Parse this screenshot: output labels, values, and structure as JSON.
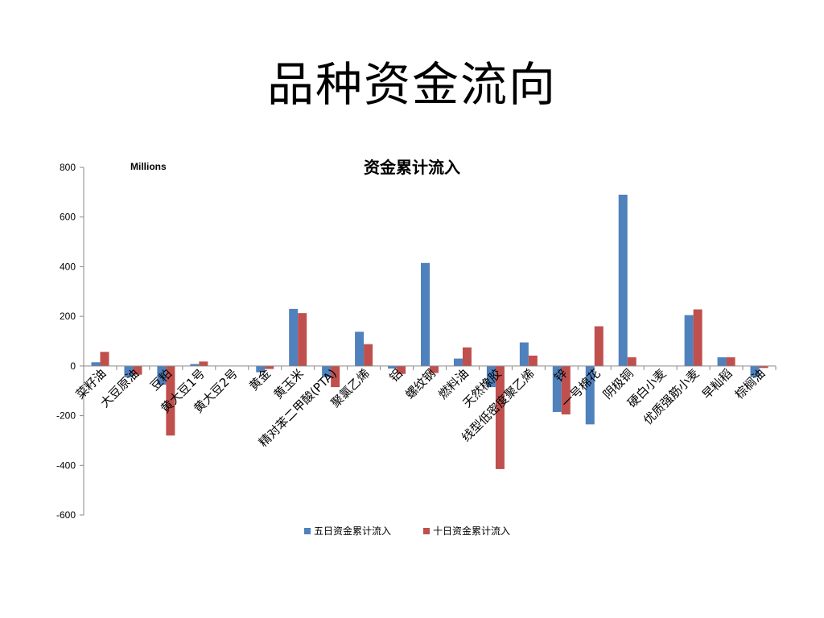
{
  "slide": {
    "title": "品种资金流向"
  },
  "chart_data": {
    "type": "bar",
    "title": "资金累计流入",
    "unit_label": "Millions",
    "ylim": [
      -600,
      800
    ],
    "yticks": [
      800,
      600,
      400,
      200,
      0,
      -200,
      -400,
      -600
    ],
    "grid": false,
    "legend_position": "bottom",
    "categories": [
      "菜籽油",
      "大豆原油",
      "豆粕",
      "黄大豆1号",
      "黄大豆2号",
      "黄金",
      "黄玉米",
      "精对苯二甲酸(PTA)",
      "聚氯乙烯",
      "铝",
      "螺纹钢",
      "燃料油",
      "天然橡胶",
      "线型低密度聚乙烯",
      "锌",
      "一号棉花",
      "阴极铜",
      "硬白小麦",
      "优质强筋小麦",
      "早籼稻",
      "棕榈油"
    ],
    "series": [
      {
        "name": "五日资金累计流入",
        "color": "#4F81BD",
        "values": [
          15,
          -45,
          -75,
          8,
          0,
          -25,
          230,
          -45,
          138,
          -10,
          415,
          30,
          -85,
          95,
          -185,
          -235,
          690,
          0,
          205,
          35,
          -45
        ]
      },
      {
        "name": "十日资金累计流入",
        "color": "#C0504D",
        "values": [
          57,
          -35,
          -280,
          18,
          0,
          -12,
          213,
          -85,
          88,
          -32,
          -28,
          75,
          -415,
          42,
          -195,
          160,
          35,
          0,
          228,
          35,
          -8
        ]
      }
    ]
  }
}
